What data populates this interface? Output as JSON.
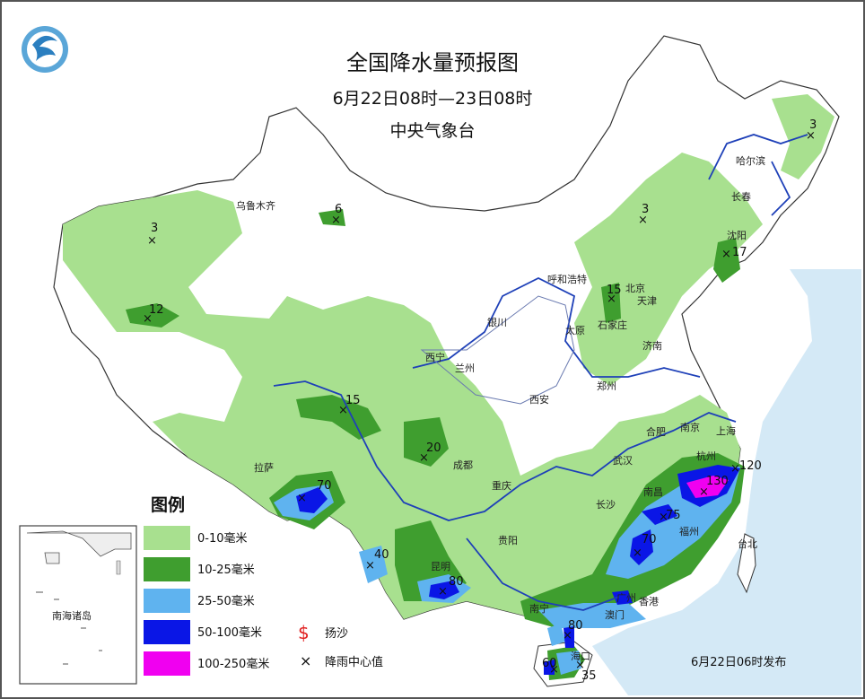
{
  "title": "全国降水量预报图",
  "period": "6月22日08时—23日08时",
  "agency": "中央气象台",
  "issued": "6月22日06时发布",
  "inset_label": "南海诸岛",
  "legend": {
    "heading": "图例",
    "items": [
      {
        "label": "0-10毫米",
        "color": "#a8e08f"
      },
      {
        "label": "10-25毫米",
        "color": "#3f9e2f"
      },
      {
        "label": "25-50毫米",
        "color": "#5fb3ef"
      },
      {
        "label": "50-100毫米",
        "color": "#0a16e6"
      },
      {
        "label": "100-250毫米",
        "color": "#f000f0"
      }
    ],
    "symbols": [
      {
        "label": "扬沙",
        "glyph": "$",
        "color": "#e02020"
      },
      {
        "label": "降雨中心值",
        "glyph": "×",
        "color": "#111111"
      }
    ]
  },
  "cities": [
    "乌鲁木齐",
    "哈尔滨",
    "长春",
    "沈阳",
    "呼和浩特",
    "北京",
    "天津",
    "石家庄",
    "太原",
    "济南",
    "银川",
    "西宁",
    "兰州",
    "西安",
    "郑州",
    "合肥",
    "南京",
    "上海",
    "杭州",
    "武汉",
    "拉萨",
    "成都",
    "重庆",
    "长沙",
    "南昌",
    "福州",
    "台北",
    "贵阳",
    "昆明",
    "南宁",
    "广州",
    "香港",
    "海口",
    "澳门"
  ],
  "rain_centers": [
    "3",
    "6",
    "3",
    "3",
    "17",
    "15",
    "12",
    "15",
    "20",
    "70",
    "40",
    "80",
    "130",
    "120",
    "75",
    "70",
    "80",
    "60",
    "35"
  ]
}
